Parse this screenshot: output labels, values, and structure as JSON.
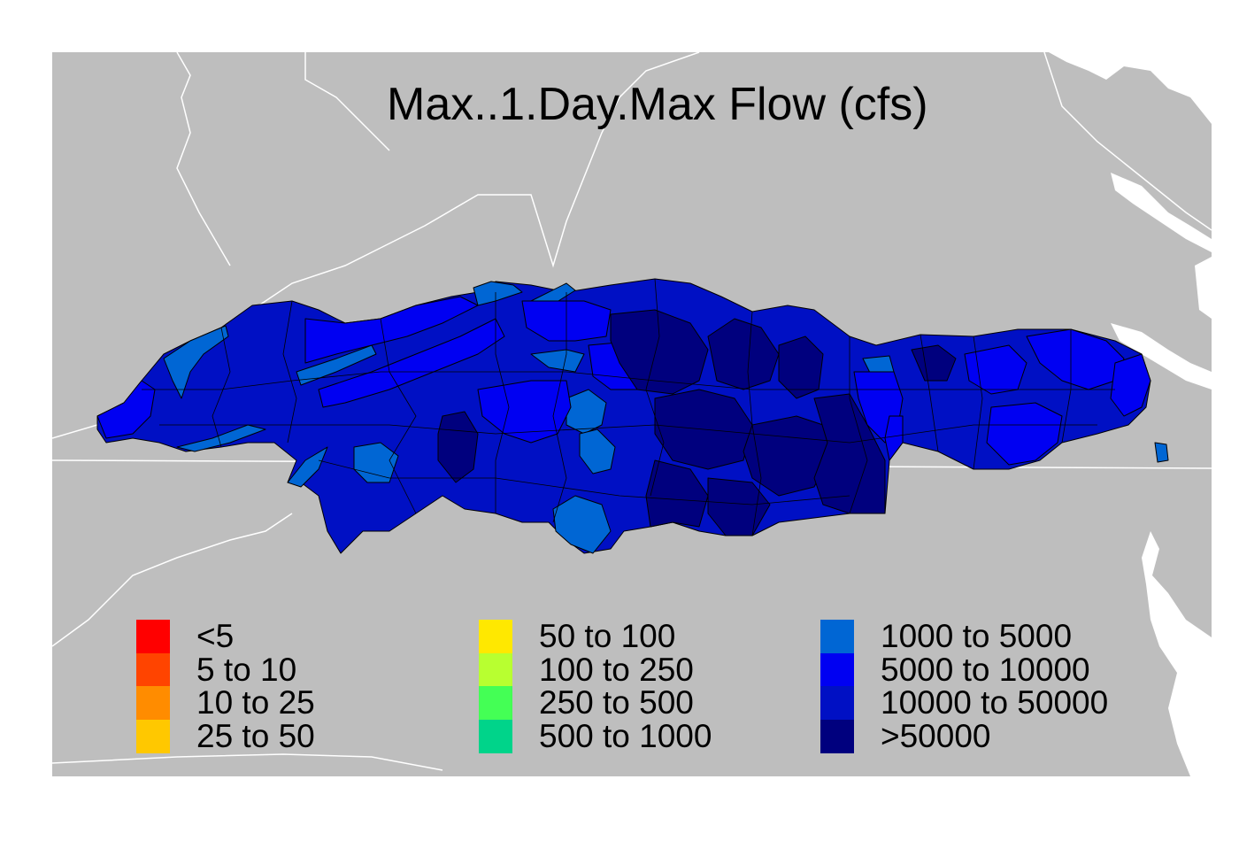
{
  "title": "Max..1.Day.Max Flow (cfs)",
  "colors": {
    "background": "#bebebe",
    "boundary": "#ffffff",
    "outline": "#000000"
  },
  "legend": {
    "columns": [
      [
        {
          "label": "<5",
          "color": "#ff0000"
        },
        {
          "label": "5 to 10",
          "color": "#ff4400"
        },
        {
          "label": "10 to 25",
          "color": "#ff8c00"
        },
        {
          "label": "25 to 50",
          "color": "#ffc800"
        }
      ],
      [
        {
          "label": "50 to 100",
          "color": "#ffe800"
        },
        {
          "label": "100 to 250",
          "color": "#b8ff30"
        },
        {
          "label": "250 to 500",
          "color": "#44ff55"
        },
        {
          "label": "500 to 1000",
          "color": "#00d48a"
        }
      ],
      [
        {
          "label": "1000 to 5000",
          "color": "#0066d4"
        },
        {
          "label": "5000 to 10000",
          "color": "#0000f2"
        },
        {
          "label": "10000 to 50000",
          "color": "#0010c4"
        },
        {
          "label": ">50000",
          "color": "#00007e"
        }
      ]
    ]
  }
}
